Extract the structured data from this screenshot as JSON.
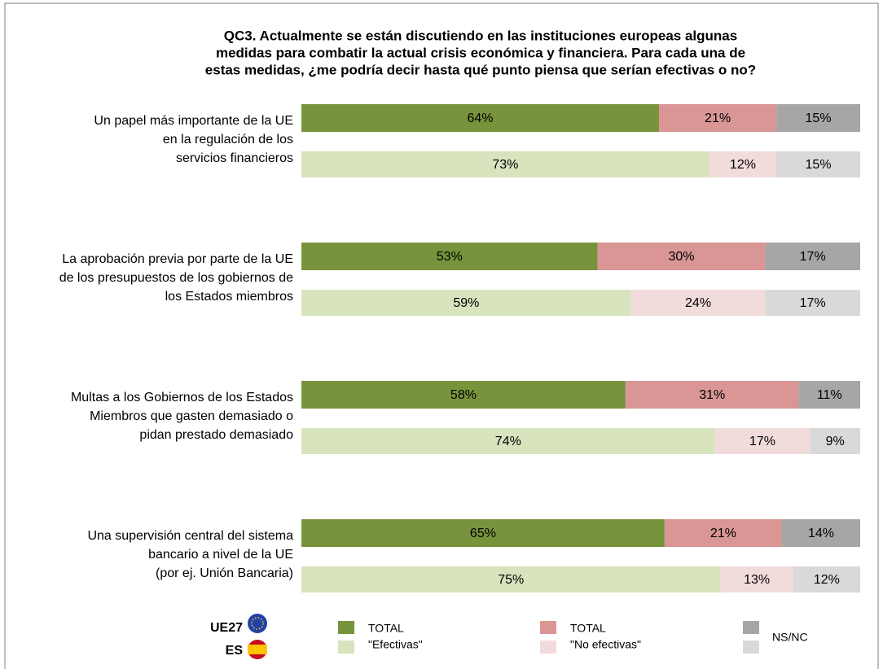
{
  "chart_data": {
    "type": "stacked-hbar",
    "title": [
      "QC3. Actualmente se están discutiendo en las instituciones europeas algunas",
      "medidas para combatir la actual crisis económica y financiera. Para cada una de",
      "estas medidas, ¿me podría decir hasta qué punto piensa que serían efectivas o no?"
    ],
    "categories": [
      [
        "Un papel más importante de la UE",
        "en la regulación de los",
        "servicios financieros"
      ],
      [
        "La aprobación previa por parte de la UE",
        "de los presupuestos de los gobiernos de",
        "los Estados miembros"
      ],
      [
        "Multas a los Gobiernos de los Estados",
        "Miembros que gasten demasiado o",
        "pidan prestado demasiado"
      ],
      [
        "Una supervisión central del sistema",
        "bancario a nivel de la UE",
        "(por ej. Unión Bancaria)"
      ]
    ],
    "xlim": [
      0,
      100
    ],
    "groups": [
      {
        "name": "UE27",
        "series": [
          {
            "color": "#77933c",
            "values": [
              64,
              53,
              58,
              65
            ],
            "value_labels": [
              "64%",
              "53%",
              "58%",
              "65%"
            ]
          },
          {
            "color": "#d99694",
            "values": [
              21,
              30,
              31,
              21
            ],
            "value_labels": [
              "21%",
              "30%",
              "31%",
              "21%"
            ]
          },
          {
            "color": "#a6a6a6",
            "values": [
              15,
              17,
              11,
              14
            ],
            "value_labels": [
              "15%",
              "17%",
              "11%",
              "14%"
            ]
          }
        ]
      },
      {
        "name": "ES",
        "series": [
          {
            "color": "#d7e4bd",
            "values": [
              73,
              59,
              74,
              75
            ],
            "value_labels": [
              "73%",
              "59%",
              "74%",
              "75%"
            ]
          },
          {
            "color": "#f2dcdb",
            "values": [
              12,
              24,
              17,
              13
            ],
            "value_labels": [
              "12%",
              "24%",
              "17%",
              "13%"
            ]
          },
          {
            "color": "#d9d9d9",
            "values": [
              15,
              17,
              9,
              12
            ],
            "value_labels": [
              "15%",
              "17%",
              "9%",
              "12%"
            ]
          }
        ]
      }
    ],
    "legend": [
      {
        "lines": [
          "TOTAL",
          "\"Efectivas\""
        ]
      },
      {
        "lines": [
          "TOTAL",
          "\"No efectivas\""
        ]
      },
      {
        "lines": [
          "NS/NC"
        ]
      }
    ]
  }
}
